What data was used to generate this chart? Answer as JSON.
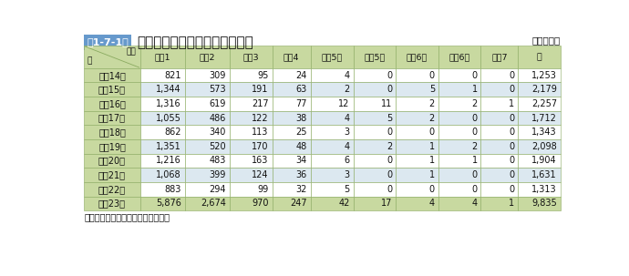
{
  "title_box": "第1-7-1表",
  "title_main": "最大震度別地震発生状況の推移",
  "subtitle": "（各年中）",
  "footer": "（備考）「気象庁資料」により作成",
  "col_headers": [
    "震度1",
    "震度2",
    "震度3",
    "震度4",
    "震度5弱",
    "震度5強",
    "震度6弱",
    "震度6強",
    "震度7",
    "計"
  ],
  "row_header_main": "区分",
  "row_header_sub": "年",
  "rows": [
    {
      "year": "平成14年",
      "v": [
        "821",
        "309",
        "95",
        "24",
        "4",
        "0",
        "0",
        "0",
        "0",
        "1,253"
      ]
    },
    {
      "year": "平成15年",
      "v": [
        "1,344",
        "573",
        "191",
        "63",
        "2",
        "0",
        "5",
        "1",
        "0",
        "2,179"
      ]
    },
    {
      "year": "平成16年",
      "v": [
        "1,316",
        "619",
        "217",
        "77",
        "12",
        "11",
        "2",
        "2",
        "1",
        "2,257"
      ]
    },
    {
      "year": "平成17年",
      "v": [
        "1,055",
        "486",
        "122",
        "38",
        "4",
        "5",
        "2",
        "0",
        "0",
        "1,712"
      ]
    },
    {
      "year": "平成18年",
      "v": [
        "862",
        "340",
        "113",
        "25",
        "3",
        "0",
        "0",
        "0",
        "0",
        "1,343"
      ]
    },
    {
      "year": "平成19年",
      "v": [
        "1,351",
        "520",
        "170",
        "48",
        "4",
        "2",
        "1",
        "2",
        "0",
        "2,098"
      ]
    },
    {
      "year": "平成20年",
      "v": [
        "1,216",
        "483",
        "163",
        "34",
        "6",
        "0",
        "1",
        "1",
        "0",
        "1,904"
      ]
    },
    {
      "year": "平成21年",
      "v": [
        "1,068",
        "399",
        "124",
        "36",
        "3",
        "0",
        "1",
        "0",
        "0",
        "1,631"
      ]
    },
    {
      "year": "平成22年",
      "v": [
        "883",
        "294",
        "99",
        "32",
        "5",
        "0",
        "0",
        "0",
        "0",
        "1,313"
      ]
    },
    {
      "year": "平成23年",
      "v": [
        "5,876",
        "2,674",
        "970",
        "247",
        "42",
        "17",
        "4",
        "4",
        "1",
        "9,835"
      ]
    }
  ],
  "header_bg": "#c8d9a0",
  "row_bg_odd": "#ffffff",
  "row_bg_even": "#dce8f0",
  "last_row_bg": "#c8d9a0",
  "border_color": "#8aaa60",
  "title_box_bg": "#6699cc",
  "title_box_fg": "#ffffff",
  "bg_color": "#ffffff",
  "text_color": "#111111",
  "header_text_color": "#111111",
  "title_text_color": "#111111"
}
